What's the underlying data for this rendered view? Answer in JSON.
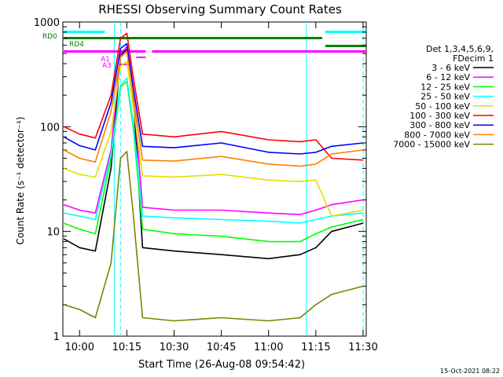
{
  "chart_data": {
    "type": "line",
    "title": "RHESSI Observing Summary Count Rates",
    "xlabel": "Start Time (26-Aug-08 09:54:42)",
    "ylabel": "Count Rate (s⁻¹ detector⁻¹)",
    "y_scale": "log",
    "ylim": [
      1,
      1000
    ],
    "xlim": [
      "09:54:42",
      "11:31:00"
    ],
    "x_ticks": [
      "10:00",
      "10:15",
      "10:30",
      "10:45",
      "11:00",
      "11:15",
      "11:30"
    ],
    "y_ticks": [
      "1",
      "10",
      "100",
      "1000"
    ],
    "legend_header": [
      "Det 1,3,4,5,6,9,",
      "FDecim 1"
    ],
    "legend_position": "right",
    "timestamp": "15-Oct-2021 08:22",
    "flags": [
      {
        "label": "RD0",
        "color": "#008000"
      },
      {
        "label": "RD4",
        "color": "#008000"
      },
      {
        "label": "A1",
        "color": "#ff00ff"
      },
      {
        "label": "A3",
        "color": "#ff00ff"
      }
    ],
    "series": [
      {
        "name": "3 - 6 keV",
        "color": "#000000",
        "points": [
          [
            "09:55",
            8.5
          ],
          [
            "10:00",
            7
          ],
          [
            "10:05",
            6.5
          ],
          [
            "10:10",
            40
          ],
          [
            "10:13",
            480
          ],
          [
            "10:15",
            550
          ],
          [
            "10:17",
            200
          ],
          [
            "10:20",
            7
          ],
          [
            "10:30",
            6.5
          ],
          [
            "10:45",
            6
          ],
          [
            "11:00",
            5.5
          ],
          [
            "11:10",
            6
          ],
          [
            "11:15",
            7
          ],
          [
            "11:20",
            10
          ],
          [
            "11:30",
            12
          ]
        ]
      },
      {
        "name": "6 - 12 keV",
        "color": "#ff00ff",
        "points": [
          [
            "09:55",
            18
          ],
          [
            "10:00",
            16
          ],
          [
            "10:05",
            15
          ],
          [
            "10:10",
            60
          ],
          [
            "10:13",
            500
          ],
          [
            "10:15",
            580
          ],
          [
            "10:17",
            220
          ],
          [
            "10:20",
            17
          ],
          [
            "10:30",
            16
          ],
          [
            "10:45",
            16
          ],
          [
            "11:00",
            15
          ],
          [
            "11:10",
            14.5
          ],
          [
            "11:15",
            16
          ],
          [
            "11:20",
            18
          ],
          [
            "11:30",
            20
          ]
        ]
      },
      {
        "name": "12 - 25 keV",
        "color": "#00ff00",
        "points": [
          [
            "09:55",
            12
          ],
          [
            "10:00",
            10.5
          ],
          [
            "10:05",
            9.5
          ],
          [
            "10:10",
            50
          ],
          [
            "10:13",
            240
          ],
          [
            "10:15",
            270
          ],
          [
            "10:17",
            100
          ],
          [
            "10:20",
            10.5
          ],
          [
            "10:30",
            9.5
          ],
          [
            "10:45",
            9
          ],
          [
            "11:00",
            8
          ],
          [
            "11:10",
            8
          ],
          [
            "11:15",
            9.5
          ],
          [
            "11:20",
            11
          ],
          [
            "11:30",
            13
          ]
        ]
      },
      {
        "name": "25 - 50 keV",
        "color": "#00ffff",
        "points": [
          [
            "09:55",
            15
          ],
          [
            "10:00",
            14
          ],
          [
            "10:05",
            13
          ],
          [
            "10:10",
            55
          ],
          [
            "10:13",
            250
          ],
          [
            "10:15",
            290
          ],
          [
            "10:17",
            110
          ],
          [
            "10:20",
            14
          ],
          [
            "10:30",
            13.5
          ],
          [
            "10:45",
            13
          ],
          [
            "11:00",
            12.5
          ],
          [
            "11:10",
            12
          ],
          [
            "11:15",
            13
          ],
          [
            "11:20",
            14
          ],
          [
            "11:30",
            15
          ]
        ]
      },
      {
        "name": "50 - 100 keV",
        "color": "#e0e000",
        "points": [
          [
            "09:55",
            40
          ],
          [
            "10:00",
            35
          ],
          [
            "10:05",
            33
          ],
          [
            "10:10",
            90
          ],
          [
            "10:13",
            380
          ],
          [
            "10:15",
            420
          ],
          [
            "10:17",
            160
          ],
          [
            "10:20",
            34
          ],
          [
            "10:30",
            33
          ],
          [
            "10:45",
            35
          ],
          [
            "11:00",
            31
          ],
          [
            "11:10",
            30
          ],
          [
            "11:15",
            31
          ],
          [
            "11:20",
            14
          ],
          [
            "11:30",
            16
          ]
        ]
      },
      {
        "name": "100 - 300 keV",
        "color": "#ff0000",
        "points": [
          [
            "09:55",
            100
          ],
          [
            "10:00",
            85
          ],
          [
            "10:05",
            78
          ],
          [
            "10:10",
            200
          ],
          [
            "10:13",
            700
          ],
          [
            "10:15",
            780
          ],
          [
            "10:17",
            300
          ],
          [
            "10:20",
            85
          ],
          [
            "10:30",
            80
          ],
          [
            "10:45",
            90
          ],
          [
            "11:00",
            75
          ],
          [
            "11:10",
            72
          ],
          [
            "11:15",
            75
          ],
          [
            "11:20",
            50
          ],
          [
            "11:30",
            48
          ]
        ]
      },
      {
        "name": "300 - 800 keV",
        "color": "#0000ff",
        "points": [
          [
            "09:55",
            80
          ],
          [
            "10:00",
            66
          ],
          [
            "10:05",
            60
          ],
          [
            "10:10",
            170
          ],
          [
            "10:13",
            560
          ],
          [
            "10:15",
            620
          ],
          [
            "10:17",
            240
          ],
          [
            "10:20",
            65
          ],
          [
            "10:30",
            63
          ],
          [
            "10:45",
            70
          ],
          [
            "11:00",
            57
          ],
          [
            "11:10",
            55
          ],
          [
            "11:15",
            57
          ],
          [
            "11:20",
            65
          ],
          [
            "11:30",
            70
          ]
        ]
      },
      {
        "name": "800 - 7000 keV",
        "color": "#ff8000",
        "points": [
          [
            "09:55",
            60
          ],
          [
            "10:00",
            50
          ],
          [
            "10:05",
            46
          ],
          [
            "10:10",
            140
          ],
          [
            "10:13",
            460
          ],
          [
            "10:15",
            520
          ],
          [
            "10:17",
            200
          ],
          [
            "10:20",
            48
          ],
          [
            "10:30",
            47
          ],
          [
            "10:45",
            52
          ],
          [
            "11:00",
            44
          ],
          [
            "11:10",
            42
          ],
          [
            "11:15",
            44
          ],
          [
            "11:20",
            55
          ],
          [
            "11:30",
            60
          ]
        ]
      },
      {
        "name": "7000 - 15000 keV",
        "color": "#808000",
        "points": [
          [
            "09:55",
            2
          ],
          [
            "10:00",
            1.8
          ],
          [
            "10:05",
            1.5
          ],
          [
            "10:10",
            5
          ],
          [
            "10:13",
            50
          ],
          [
            "10:15",
            58
          ],
          [
            "10:17",
            15
          ],
          [
            "10:20",
            1.5
          ],
          [
            "10:30",
            1.4
          ],
          [
            "10:45",
            1.5
          ],
          [
            "11:00",
            1.4
          ],
          [
            "11:10",
            1.5
          ],
          [
            "11:15",
            2
          ],
          [
            "11:20",
            2.5
          ],
          [
            "11:30",
            3
          ]
        ]
      }
    ]
  }
}
